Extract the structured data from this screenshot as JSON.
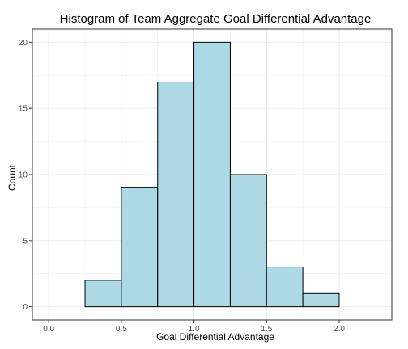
{
  "chart_data": {
    "type": "bar",
    "title": "Histogram of Team Aggregate Goal Differential Advantage",
    "xlabel": "Goal Differential Advantage",
    "ylabel": "Count",
    "bins": [
      {
        "start": 0.0,
        "end": 0.25,
        "count": 0
      },
      {
        "start": 0.25,
        "end": 0.5,
        "count": 2
      },
      {
        "start": 0.5,
        "end": 0.75,
        "count": 9
      },
      {
        "start": 0.75,
        "end": 1.0,
        "count": 17
      },
      {
        "start": 1.0,
        "end": 1.25,
        "count": 20
      },
      {
        "start": 1.25,
        "end": 1.5,
        "count": 10
      },
      {
        "start": 1.5,
        "end": 1.75,
        "count": 3
      },
      {
        "start": 1.75,
        "end": 2.0,
        "count": 1
      },
      {
        "start": 2.0,
        "end": 2.25,
        "count": 0
      }
    ],
    "xlim": [
      -0.1125,
      2.3625
    ],
    "ylim": [
      -1,
      21
    ],
    "x_ticks": [
      "0.0",
      "0.5",
      "1.0",
      "1.5",
      "2.0"
    ],
    "y_ticks": [
      "0",
      "5",
      "10",
      "15",
      "20"
    ],
    "grid": true,
    "colors": {
      "bar_fill": "#add8e6",
      "bar_stroke": "#000000",
      "grid": "#ebebeb",
      "panel_border": "#333333"
    }
  }
}
